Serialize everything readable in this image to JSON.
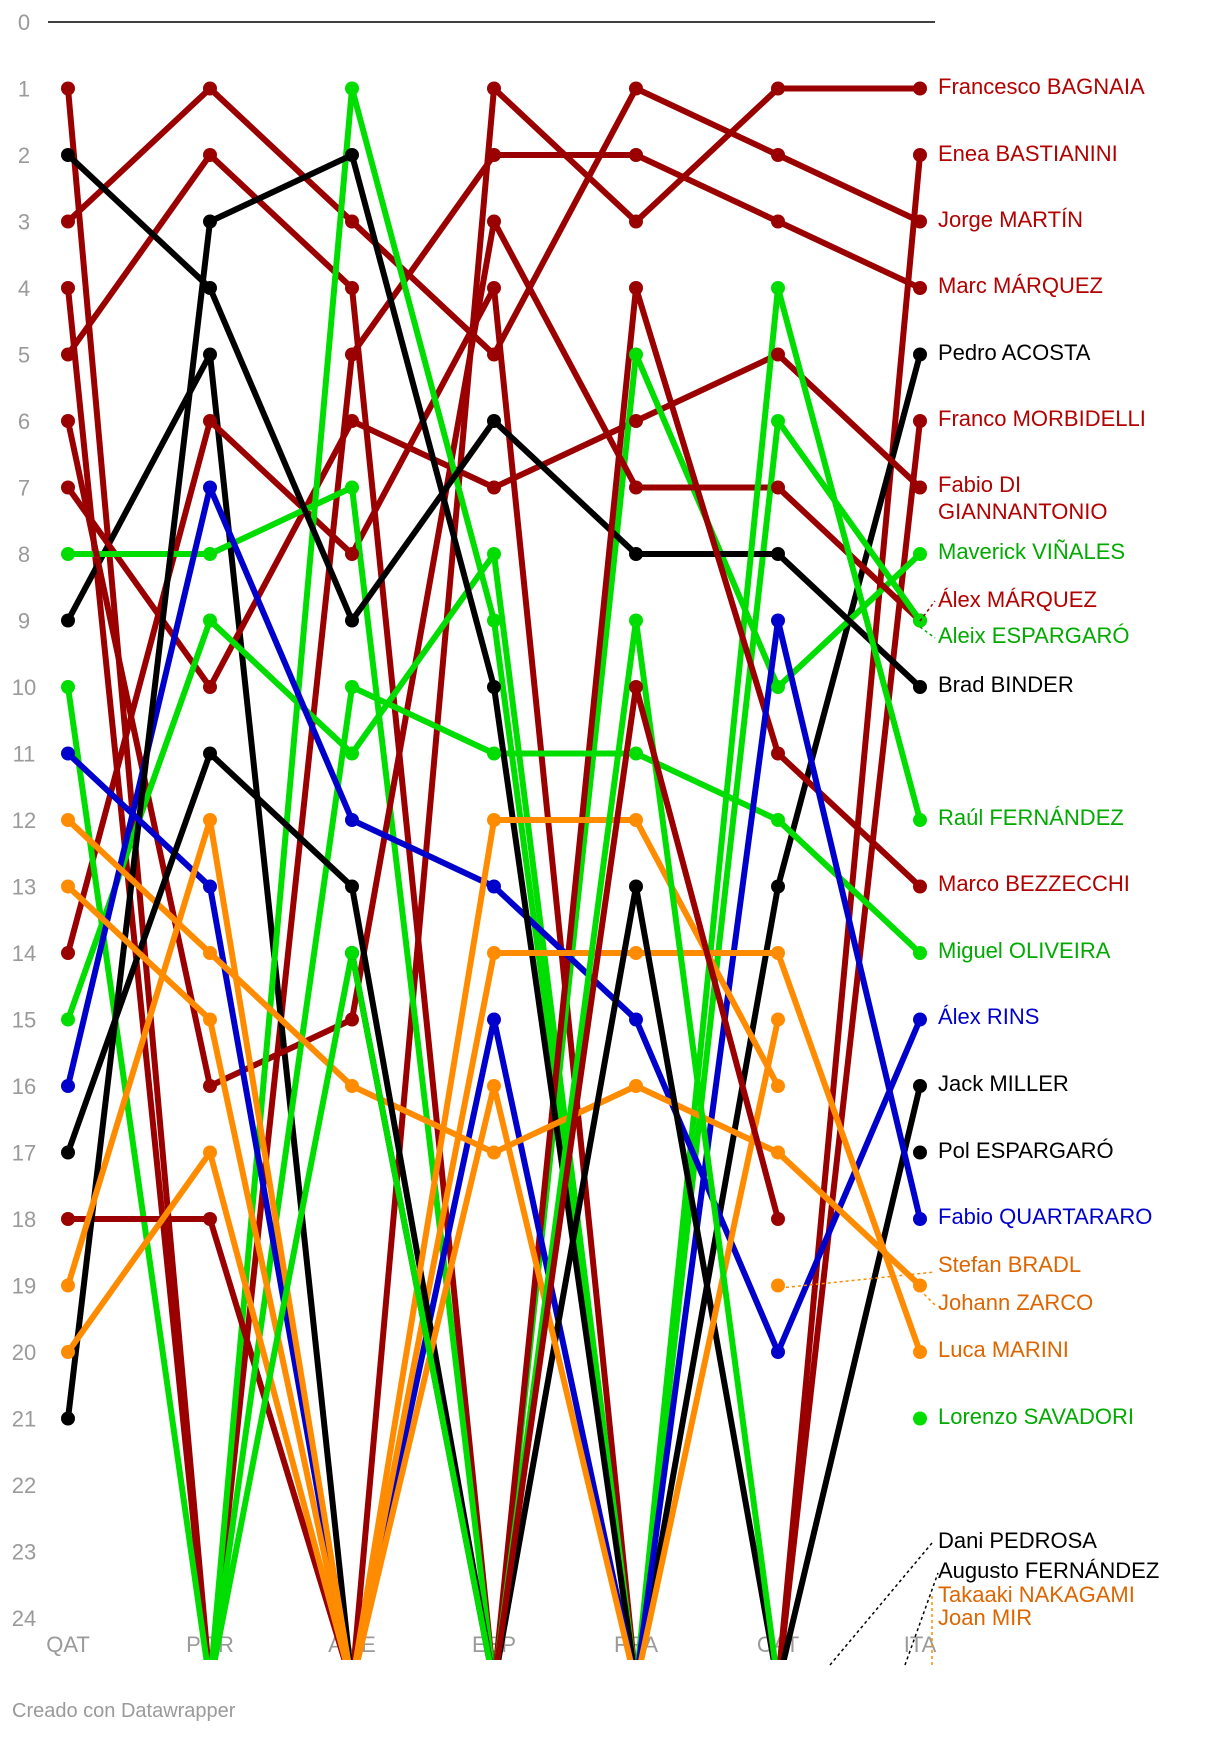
{
  "footer": "Creado con Datawrapper",
  "chart_data": {
    "type": "line",
    "title": "",
    "xlabel": "",
    "ylabel": "",
    "ylim": [
      0,
      24
    ],
    "y_inverted": true,
    "y_ticks": [
      "0",
      "1",
      "2",
      "3",
      "4",
      "5",
      "6",
      "7",
      "8",
      "9",
      "10",
      "11",
      "12",
      "13",
      "14",
      "15",
      "16",
      "17",
      "18",
      "19",
      "20",
      "21",
      "22",
      "23",
      "24"
    ],
    "categories": [
      "QAT",
      "POR",
      "AME",
      "ESP",
      "FRA",
      "CAT",
      "ITA"
    ],
    "colors": {
      "Ducati": "#9b0000",
      "KTM": "#000000",
      "Aprilia": "#00dd00",
      "Yamaha": "#0000cc",
      "Honda": "#ff8c00"
    },
    "series": [
      {
        "name": "Francesco BAGNAIA",
        "team": "Ducati",
        "label_color": "#b30000",
        "values": [
          1,
          25,
          25,
          1,
          3,
          1,
          1
        ]
      },
      {
        "name": "Enea BASTIANINI",
        "team": "Ducati",
        "label_color": "#b30000",
        "values": [
          5,
          2,
          4,
          25,
          25,
          25,
          2
        ]
      },
      {
        "name": "Jorge MARTÍN",
        "team": "Ducati",
        "label_color": "#b30000",
        "values": [
          3,
          1,
          3,
          5,
          1,
          2,
          3
        ]
      },
      {
        "name": "Marc MÁRQUEZ",
        "team": "Ducati",
        "label_color": "#b30000",
        "values": [
          4,
          25,
          5,
          2,
          2,
          3,
          4
        ]
      },
      {
        "name": "Pedro ACOSTA",
        "team": "KTM",
        "label_color": "#000000",
        "values": [
          9,
          5,
          25,
          25,
          25,
          13,
          5
        ]
      },
      {
        "name": "Franco MORBIDELLI",
        "team": "Ducati",
        "label_color": "#b30000",
        "values": [
          14,
          6,
          8,
          4,
          25,
          25,
          6
        ]
      },
      {
        "name": "Fabio DI GIANNANTONIO",
        "label_lines": [
          "Fabio DI",
          "GIANNANTONIO"
        ],
        "team": "Ducati",
        "label_color": "#b30000",
        "values": [
          7,
          10,
          6,
          7,
          6,
          5,
          7
        ]
      },
      {
        "name": "Maverick VIÑALES",
        "team": "Aprilia",
        "label_color": "#00aa00",
        "values": [
          8,
          8,
          7,
          25,
          5,
          10,
          8
        ]
      },
      {
        "name": "Álex MÁRQUEZ",
        "team": "Ducati",
        "label_color": "#b30000",
        "values": [
          6,
          16,
          15,
          3,
          7,
          7,
          9
        ]
      },
      {
        "name": "Aleix ESPARGARÓ",
        "team": "Aprilia",
        "label_color": "#00aa00",
        "values": [
          10,
          25,
          1,
          9,
          25,
          6,
          9
        ]
      },
      {
        "name": "Brad BINDER",
        "team": "KTM",
        "label_color": "#000000",
        "values": [
          2,
          4,
          9,
          6,
          8,
          8,
          10
        ]
      },
      {
        "name": "Raúl FERNÁNDEZ",
        "team": "Aprilia",
        "label_color": "#00aa00",
        "values": [
          15,
          9,
          11,
          8,
          25,
          4,
          12
        ]
      },
      {
        "name": "Marco BEZZECCHI",
        "team": "Ducati",
        "label_color": "#b30000",
        "values": [
          18,
          18,
          25,
          25,
          4,
          11,
          13
        ]
      },
      {
        "name": "Miguel OLIVEIRA",
        "team": "Aprilia",
        "label_color": "#00aa00",
        "values": [
          25,
          25,
          10,
          11,
          11,
          12,
          14
        ]
      },
      {
        "name": "Álex RINS",
        "team": "Yamaha",
        "label_color": "#0000cc",
        "values": [
          16,
          7,
          12,
          13,
          15,
          20,
          15
        ]
      },
      {
        "name": "Jack MILLER",
        "team": "KTM",
        "label_color": "#000000",
        "values": [
          21,
          3,
          2,
          10,
          25,
          25,
          16
        ]
      },
      {
        "name": "Pol ESPARGARÓ",
        "team": "KTM",
        "label_color": "#000000",
        "values": [
          null,
          null,
          null,
          null,
          null,
          null,
          17
        ]
      },
      {
        "name": "Fabio QUARTARARO",
        "team": "Yamaha",
        "label_color": "#0000cc",
        "values": [
          11,
          13,
          25,
          15,
          25,
          9,
          18
        ]
      },
      {
        "name": "Stefan BRADL",
        "team": "Honda",
        "label_color": "#dd6600",
        "values": [
          null,
          null,
          null,
          null,
          null,
          19,
          null
        ]
      },
      {
        "name": "Johann ZARCO",
        "team": "Honda",
        "label_color": "#dd6600",
        "values": [
          12,
          14,
          16,
          17,
          16,
          17,
          19
        ]
      },
      {
        "name": "Luca MARINI",
        "team": "Honda",
        "label_color": "#dd6600",
        "values": [
          20,
          17,
          25,
          14,
          14,
          14,
          20
        ]
      },
      {
        "name": "Lorenzo SAVADORI",
        "team": "Aprilia",
        "label_color": "#00aa00",
        "values": [
          null,
          null,
          null,
          null,
          null,
          null,
          21
        ]
      },
      {
        "name": "Dani PEDROSA",
        "team": "KTM",
        "label_color": "#000000",
        "values": [
          null,
          null,
          14,
          25,
          null,
          null,
          null
        ]
      },
      {
        "name": "Augusto FERNÁNDEZ",
        "team": "KTM",
        "label_color": "#000000",
        "values": [
          17,
          11,
          13,
          25,
          13,
          25,
          null
        ]
      },
      {
        "name": "Takaaki NAKAGAMI",
        "team": "Honda",
        "label_color": "#dd6600",
        "values": [
          13,
          15,
          25,
          16,
          25,
          15,
          null
        ]
      },
      {
        "name": "Joan MIR",
        "team": "Honda",
        "label_color": "#dd6600",
        "values": [
          19,
          12,
          25,
          12,
          12,
          16,
          null
        ]
      },
      {
        "name": "Extra Aprilia",
        "unlabeled": true,
        "team": "Aprilia",
        "label_color": "#00aa00",
        "values": [
          25,
          25,
          14,
          25,
          9,
          25,
          null
        ]
      },
      {
        "name": "Extra Ducati",
        "unlabeled": true,
        "team": "Ducati",
        "label_color": "#b30000",
        "values": [
          25,
          25,
          25,
          25,
          10,
          18,
          null
        ]
      }
    ]
  }
}
